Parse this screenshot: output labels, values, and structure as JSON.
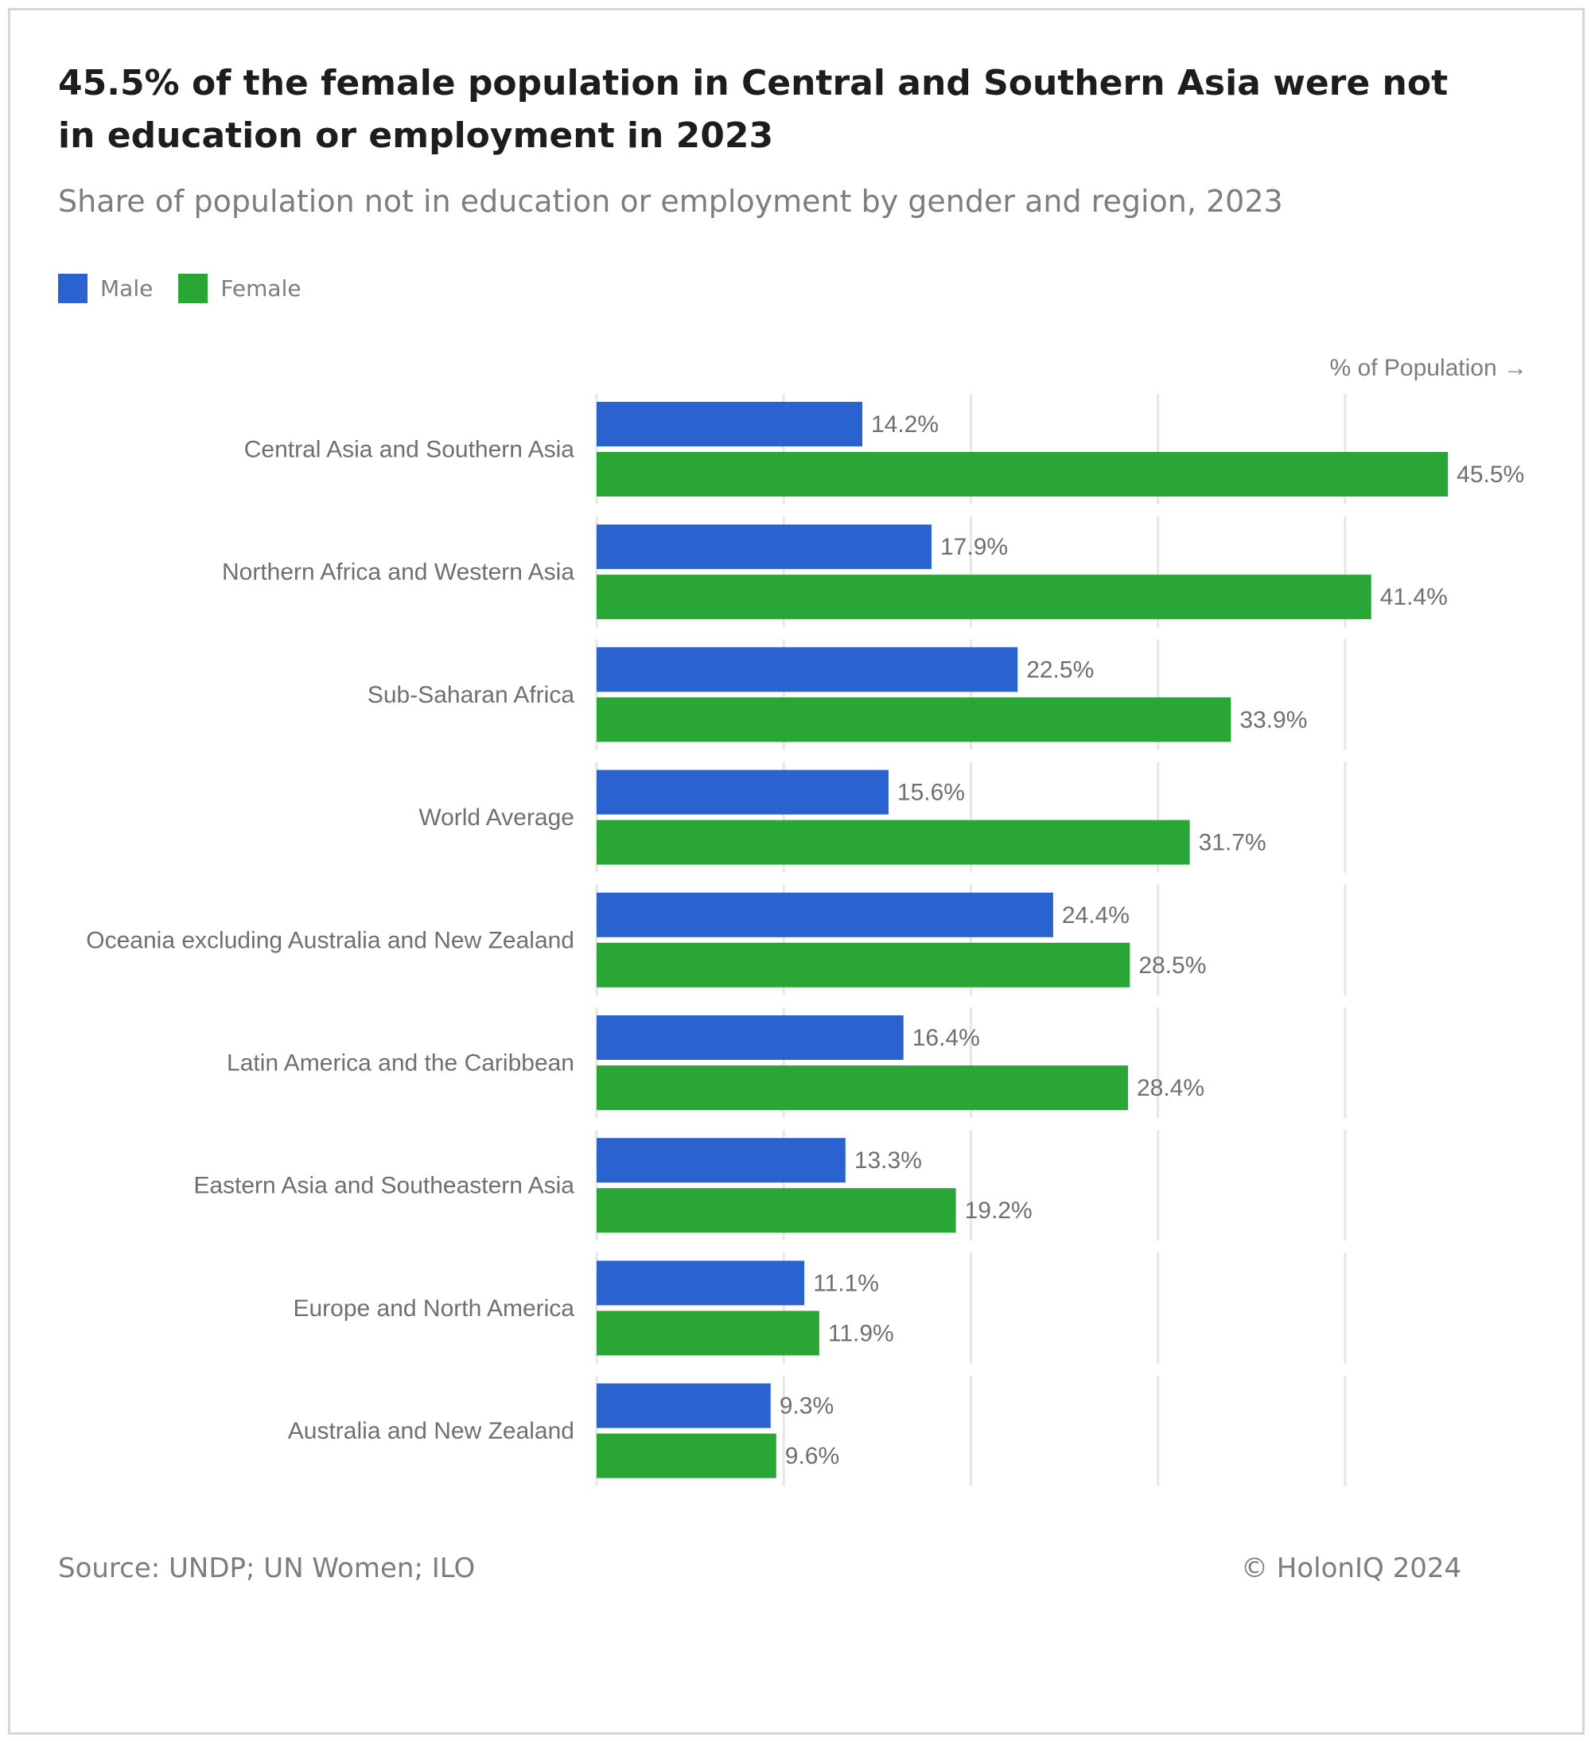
{
  "title": "45.5% of the female population in Central and Southern Asia were not in education or employment in 2023",
  "subtitle": "Share of population not in education or employment by gender and region, 2023",
  "axis_note": "% of Population →",
  "footer": {
    "source": "Source: UNDP; UN Women; ILO",
    "copyright": "© HolonIQ 2024"
  },
  "colors": {
    "male": "#2a63cf",
    "female": "#2aa637",
    "grid": "#e6e6e6"
  },
  "chart_data": {
    "type": "bar",
    "orientation": "horizontal",
    "categories": [
      "Central Asia and Southern Asia",
      "Northern Africa and Western Asia",
      "Sub-Saharan Africa",
      "World Average",
      "Oceania excluding Australia and New Zealand",
      "Latin America and the Caribbean",
      "Eastern Asia and Southeastern Asia",
      "Europe and North America",
      "Australia and New Zealand"
    ],
    "series": [
      {
        "name": "Male",
        "values": [
          14.2,
          17.9,
          22.5,
          15.6,
          24.4,
          16.4,
          13.3,
          11.1,
          9.3
        ],
        "labels": [
          "14.2%",
          "17.9%",
          "22.5%",
          "15.6%",
          "24.4%",
          "16.4%",
          "13.3%",
          "11.1%",
          "9.3%"
        ]
      },
      {
        "name": "Female",
        "values": [
          45.5,
          41.4,
          33.9,
          31.7,
          28.5,
          28.4,
          19.2,
          11.9,
          9.6
        ],
        "labels": [
          "45.5%",
          "41.4%",
          "33.9%",
          "31.7%",
          "28.5%",
          "28.4%",
          "19.2%",
          "11.9%",
          "9.6%"
        ]
      }
    ],
    "xlim": [
      0,
      50
    ],
    "grid": true,
    "legend": "top-left"
  }
}
